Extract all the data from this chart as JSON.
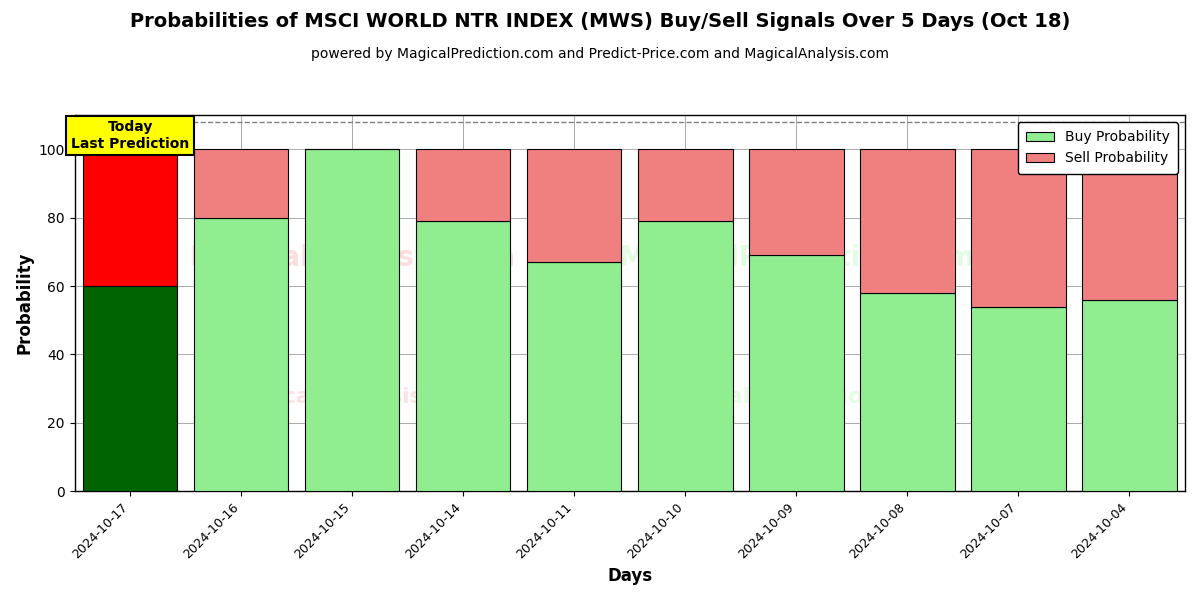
{
  "title": "Probabilities of MSCI WORLD NTR INDEX (MWS) Buy/Sell Signals Over 5 Days (Oct 18)",
  "subtitle": "powered by MagicalPrediction.com and Predict-Price.com and MagicalAnalysis.com",
  "xlabel": "Days",
  "ylabel": "Probability",
  "categories": [
    "2024-10-17",
    "2024-10-16",
    "2024-10-15",
    "2024-10-14",
    "2024-10-11",
    "2024-10-10",
    "2024-10-09",
    "2024-10-08",
    "2024-10-07",
    "2024-10-04"
  ],
  "buy_values": [
    60,
    80,
    100,
    79,
    67,
    79,
    69,
    58,
    54,
    56
  ],
  "sell_values": [
    40,
    20,
    0,
    21,
    33,
    21,
    31,
    42,
    46,
    44
  ],
  "today_buy_color": "#006400",
  "today_sell_color": "#FF0000",
  "normal_buy_color": "#90EE90",
  "normal_sell_color": "#F08080",
  "today_label_bg": "#FFFF00",
  "today_label_text": "Today\nLast Prediction",
  "legend_buy_label": "Buy Probability",
  "legend_sell_label": "Sell Probability",
  "ylim": [
    0,
    110
  ],
  "yticks": [
    0,
    20,
    40,
    60,
    80,
    100
  ],
  "grid_color": "#aaaaaa",
  "dashed_line_y": 108,
  "bar_width": 0.85,
  "figsize": [
    12.0,
    6.0
  ],
  "dpi": 100
}
